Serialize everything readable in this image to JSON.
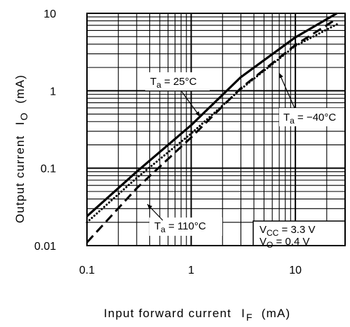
{
  "chart_data": {
    "type": "line",
    "xlabel": "Input forward current",
    "xlabel_symbol": "I",
    "xlabel_subscript": "F",
    "xlabel_unit": "(mA)",
    "ylabel": "Output current",
    "ylabel_symbol": "I",
    "ylabel_subscript": "O",
    "ylabel_unit": "(mA)",
    "x_scale": "log",
    "y_scale": "log",
    "xlim": [
      0.1,
      30
    ],
    "ylim": [
      0.01,
      10
    ],
    "x_ticks": [
      0.1,
      1,
      10
    ],
    "x_tick_labels": [
      "0.1",
      "1",
      "10"
    ],
    "y_ticks": [
      0.01,
      0.1,
      1,
      10
    ],
    "y_tick_labels": [
      "0.01",
      "0.1",
      "1",
      "10"
    ],
    "grid": true,
    "series": [
      {
        "label_prefix": "T",
        "label_subscript": "a",
        "label_suffix": " = 25°C",
        "style": "solid",
        "points": [
          [
            0.1,
            0.024
          ],
          [
            0.3,
            0.09
          ],
          [
            1,
            0.36
          ],
          [
            3,
            1.5
          ],
          [
            10,
            4.9
          ],
          [
            25,
            10
          ]
        ]
      },
      {
        "label_prefix": "T",
        "label_subscript": "a",
        "label_suffix": " = −40°C",
        "style": "dotted",
        "points": [
          [
            0.1,
            0.02
          ],
          [
            0.3,
            0.075
          ],
          [
            1,
            0.28
          ],
          [
            3,
            1.05
          ],
          [
            10,
            3.8
          ],
          [
            25,
            7.2
          ]
        ]
      },
      {
        "label_prefix": "T",
        "label_subscript": "a",
        "label_suffix": " = 110°C",
        "style": "dashed",
        "points": [
          [
            0.1,
            0.011
          ],
          [
            0.3,
            0.055
          ],
          [
            1,
            0.25
          ],
          [
            3,
            1.08
          ],
          [
            10,
            3.9
          ],
          [
            25,
            8.5
          ]
        ]
      }
    ],
    "conditions": [
      {
        "prefix": "V",
        "subscript": "CC",
        "suffix": " = 3.3 V"
      },
      {
        "prefix": "V",
        "subscript": "O",
        "suffix": " = 0.4 V"
      }
    ]
  }
}
